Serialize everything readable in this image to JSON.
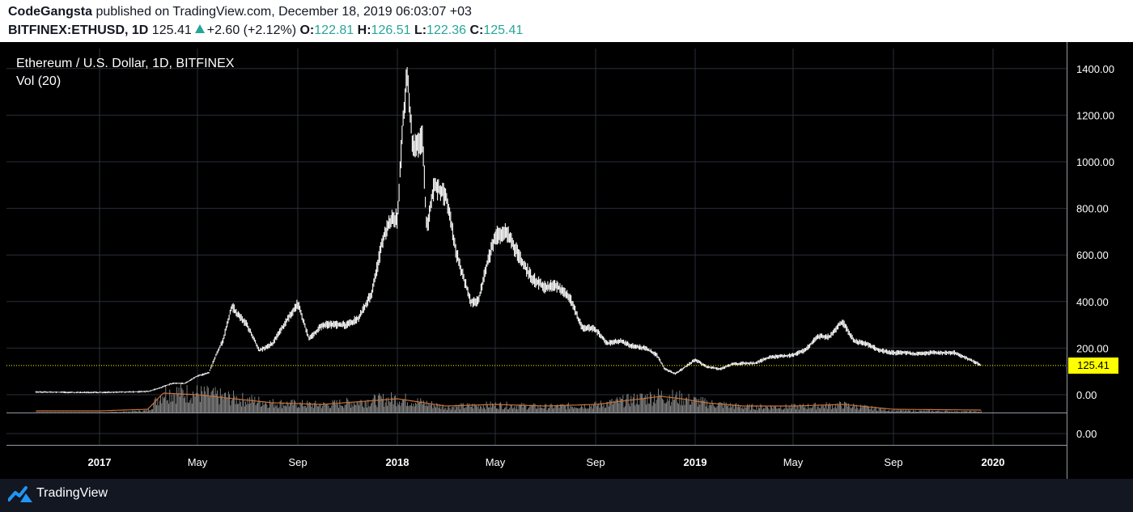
{
  "header": {
    "publisher": "CodeGangsta",
    "published_text": "published on TradingView.com, December 18, 2019 06:03:07 +03",
    "symbol": "BITFINEX:ETHUSD, 1D",
    "price": "125.41",
    "change": "+2.60 (+2.12%)",
    "o_label": "O:",
    "o_value": "122.81",
    "h_label": "H:",
    "h_value": "126.51",
    "l_label": "L:",
    "l_value": "122.36",
    "c_label": "C:",
    "c_value": "125.41"
  },
  "legend": {
    "title": "Ethereum / U.S. Dollar, 1D, BITFINEX",
    "volume": "Vol (20)"
  },
  "current_price_label": "125.41",
  "footer": {
    "brand": "TradingView"
  },
  "colors": {
    "candles": "#ffffff",
    "volume_bars": "#8a8a8a",
    "volume_ma": "#c8743c",
    "price_line": "#ffff00",
    "grid": "#2a2e39",
    "teal": "#26a69a"
  },
  "chart_data": {
    "type": "line",
    "title": "Ethereum / U.S. Dollar, 1D, BITFINEX",
    "x_ticks": [
      "2017",
      "May",
      "Sep",
      "2018",
      "May",
      "Sep",
      "2019",
      "May",
      "Sep",
      "2020"
    ],
    "y_ticks": [
      "1400.00",
      "1200.00",
      "1000.00",
      "800.00",
      "600.00",
      "400.00",
      "200.00",
      "0.00"
    ],
    "volume_y_ticks": [
      "0.00"
    ],
    "ylim": [
      0,
      1400
    ],
    "current_price": 125.41,
    "series": [
      {
        "name": "ETHUSD",
        "dates": [
          "2016-10-15",
          "2016-12-01",
          "2017-01-15",
          "2017-03-01",
          "2017-03-15",
          "2017-04-01",
          "2017-04-15",
          "2017-05-01",
          "2017-05-15",
          "2017-05-25",
          "2017-06-01",
          "2017-06-12",
          "2017-06-20",
          "2017-07-01",
          "2017-07-16",
          "2017-08-01",
          "2017-08-15",
          "2017-09-01",
          "2017-09-15",
          "2017-10-01",
          "2017-10-15",
          "2017-11-01",
          "2017-11-15",
          "2017-12-01",
          "2017-12-15",
          "2017-12-25",
          "2018-01-01",
          "2018-01-08",
          "2018-01-13",
          "2018-01-20",
          "2018-02-01",
          "2018-02-06",
          "2018-02-15",
          "2018-03-01",
          "2018-03-15",
          "2018-04-01",
          "2018-04-10",
          "2018-04-20",
          "2018-05-01",
          "2018-05-15",
          "2018-06-01",
          "2018-06-15",
          "2018-07-01",
          "2018-07-15",
          "2018-08-01",
          "2018-08-15",
          "2018-09-01",
          "2018-09-15",
          "2018-10-01",
          "2018-10-15",
          "2018-11-01",
          "2018-11-15",
          "2018-11-25",
          "2018-12-08",
          "2018-12-20",
          "2019-01-01",
          "2019-01-15",
          "2019-02-01",
          "2019-02-15",
          "2019-03-01",
          "2019-03-15",
          "2019-04-01",
          "2019-04-15",
          "2019-05-01",
          "2019-05-15",
          "2019-06-01",
          "2019-06-15",
          "2019-06-26",
          "2019-07-01",
          "2019-07-15",
          "2019-08-01",
          "2019-08-15",
          "2019-09-01",
          "2019-09-15",
          "2019-10-01",
          "2019-10-15",
          "2019-11-01",
          "2019-11-15",
          "2019-12-01",
          "2019-12-18"
        ],
        "values": [
          12,
          10,
          10,
          14,
          28,
          50,
          48,
          80,
          95,
          180,
          230,
          380,
          340,
          300,
          190,
          220,
          300,
          390,
          240,
          300,
          300,
          300,
          330,
          440,
          680,
          760,
          750,
          1180,
          1380,
          1050,
          1100,
          700,
          900,
          860,
          600,
          400,
          400,
          550,
          680,
          700,
          580,
          500,
          460,
          470,
          410,
          290,
          280,
          220,
          230,
          210,
          200,
          170,
          110,
          90,
          120,
          150,
          120,
          110,
          130,
          135,
          135,
          160,
          165,
          170,
          190,
          250,
          250,
          300,
          310,
          230,
          215,
          190,
          180,
          180,
          175,
          180,
          180,
          180,
          155,
          125
        ]
      },
      {
        "name": "Vol (20)",
        "dates": [
          "2016-10-15",
          "2017-01-01",
          "2017-03-01",
          "2017-03-20",
          "2017-05-01",
          "2017-06-15",
          "2017-08-01",
          "2017-10-01",
          "2018-01-01",
          "2018-03-01",
          "2018-05-01",
          "2018-07-01",
          "2018-09-01",
          "2018-11-20",
          "2018-12-15",
          "2019-01-15",
          "2019-03-01",
          "2019-05-01",
          "2019-07-01",
          "2019-09-01",
          "2019-12-18"
        ],
        "values": [
          0,
          0,
          2,
          22,
          20,
          15,
          10,
          8,
          15,
          6,
          8,
          6,
          8,
          18,
          15,
          10,
          6,
          6,
          8,
          2,
          1
        ]
      }
    ]
  }
}
